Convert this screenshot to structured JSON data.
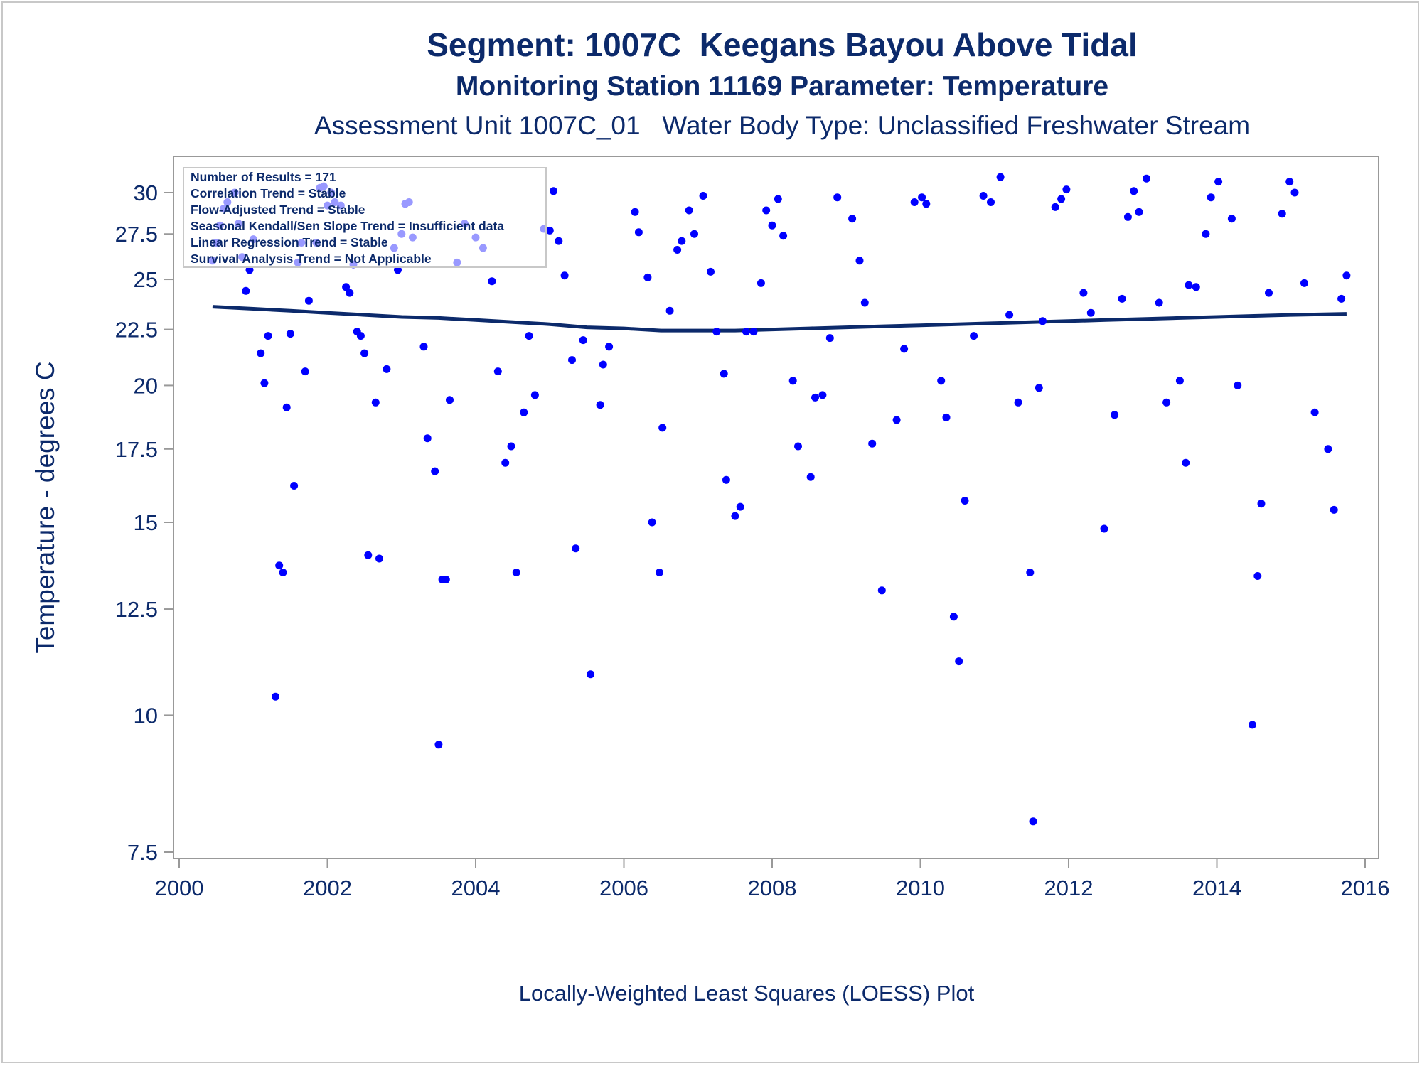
{
  "chart_data": {
    "type": "scatter",
    "title": "Segment: 1007C  Keegans Bayou Above Tidal",
    "subtitle": "Monitoring Station 11169 Parameter: Temperature",
    "subtitle2": "Assessment Unit 1007C_01   Water Body Type: Unclassified Freshwater Stream",
    "ylabel": "Temperature - degrees C",
    "xlabel": "",
    "footnote": "Locally-Weighted Least Squares (LOESS) Plot",
    "y_scale": "log",
    "xlim": [
      2000,
      2016
    ],
    "ylim": [
      7.5,
      31.6
    ],
    "x_ticks": [
      "2000",
      "2002",
      "2004",
      "2006",
      "2008",
      "2010",
      "2012",
      "2014",
      "2016"
    ],
    "y_ticks": [
      "7.5",
      "10",
      "12.5",
      "15",
      "17.5",
      "20",
      "22.5",
      "25",
      "27.5",
      "30"
    ],
    "legend_lines": [
      "Number of Results = 171",
      "Correlation Trend = Stable",
      "Flow-Adjusted Trend = Stable",
      "Seasonal Kendall/Sen Slope Trend = Insufficient data",
      "Linear Regression Trend = Stable",
      "Survival Analysis Trend = Not Applicable"
    ],
    "legend_position": "top-left",
    "colors": {
      "points": "#0000ff",
      "loess": "#0c2a6b",
      "text": "#0c2a6b",
      "axis": "#999999"
    },
    "points": [
      [
        2000.45,
        26.0
      ],
      [
        2000.5,
        27.0
      ],
      [
        2000.55,
        28.0
      ],
      [
        2000.6,
        29.0
      ],
      [
        2000.65,
        29.4
      ],
      [
        2000.75,
        30.0
      ],
      [
        2000.8,
        28.1
      ],
      [
        2000.85,
        26.2
      ],
      [
        2000.9,
        24.4
      ],
      [
        2000.95,
        25.5
      ],
      [
        2001.0,
        27.2
      ],
      [
        2001.1,
        21.4
      ],
      [
        2001.15,
        20.1
      ],
      [
        2001.2,
        22.2
      ],
      [
        2001.3,
        10.4
      ],
      [
        2001.35,
        13.7
      ],
      [
        2001.4,
        13.5
      ],
      [
        2001.45,
        19.1
      ],
      [
        2001.5,
        22.3
      ],
      [
        2001.55,
        16.2
      ],
      [
        2001.6,
        25.9
      ],
      [
        2001.65,
        27.0
      ],
      [
        2001.7,
        20.6
      ],
      [
        2001.75,
        23.9
      ],
      [
        2001.85,
        27.0
      ],
      [
        2001.9,
        30.3
      ],
      [
        2001.95,
        30.4
      ],
      [
        2002.0,
        29.2
      ],
      [
        2002.05,
        30.0
      ],
      [
        2002.1,
        29.4
      ],
      [
        2002.18,
        29.2
      ],
      [
        2002.25,
        24.6
      ],
      [
        2002.3,
        24.3
      ],
      [
        2002.35,
        25.8
      ],
      [
        2002.4,
        22.4
      ],
      [
        2002.45,
        22.2
      ],
      [
        2002.5,
        21.4
      ],
      [
        2002.55,
        14.0
      ],
      [
        2002.65,
        19.3
      ],
      [
        2002.7,
        13.9
      ],
      [
        2002.8,
        20.7
      ],
      [
        2002.9,
        26.7
      ],
      [
        2002.95,
        25.5
      ],
      [
        2003.0,
        27.5
      ],
      [
        2003.05,
        29.3
      ],
      [
        2003.1,
        29.4
      ],
      [
        2003.15,
        27.3
      ],
      [
        2003.3,
        21.7
      ],
      [
        2003.35,
        17.9
      ],
      [
        2003.45,
        16.7
      ],
      [
        2003.5,
        9.4
      ],
      [
        2003.55,
        13.3
      ],
      [
        2003.6,
        13.3
      ],
      [
        2003.65,
        19.4
      ],
      [
        2003.75,
        25.9
      ],
      [
        2003.85,
        28.1
      ],
      [
        2004.0,
        27.3
      ],
      [
        2004.1,
        26.7
      ],
      [
        2004.22,
        24.9
      ],
      [
        2004.3,
        20.6
      ],
      [
        2004.4,
        17.0
      ],
      [
        2004.48,
        17.6
      ],
      [
        2004.55,
        13.5
      ],
      [
        2004.65,
        18.9
      ],
      [
        2004.72,
        22.2
      ],
      [
        2004.8,
        19.6
      ],
      [
        2004.92,
        27.8
      ],
      [
        2005.0,
        27.7
      ],
      [
        2005.05,
        30.1
      ],
      [
        2005.12,
        27.1
      ],
      [
        2005.2,
        25.2
      ],
      [
        2005.3,
        21.1
      ],
      [
        2005.35,
        14.2
      ],
      [
        2005.45,
        22.0
      ],
      [
        2005.55,
        10.9
      ],
      [
        2005.68,
        19.2
      ],
      [
        2005.72,
        20.9
      ],
      [
        2005.8,
        21.7
      ],
      [
        2006.15,
        28.8
      ],
      [
        2006.2,
        27.6
      ],
      [
        2006.32,
        25.1
      ],
      [
        2006.38,
        15.0
      ],
      [
        2006.48,
        13.5
      ],
      [
        2006.52,
        18.3
      ],
      [
        2006.62,
        23.4
      ],
      [
        2006.72,
        26.6
      ],
      [
        2006.78,
        27.1
      ],
      [
        2006.88,
        28.9
      ],
      [
        2006.95,
        27.5
      ],
      [
        2007.07,
        29.8
      ],
      [
        2007.17,
        25.4
      ],
      [
        2007.25,
        22.4
      ],
      [
        2007.35,
        20.5
      ],
      [
        2007.38,
        16.4
      ],
      [
        2007.5,
        15.2
      ],
      [
        2007.57,
        15.5
      ],
      [
        2007.65,
        22.4
      ],
      [
        2007.75,
        22.4
      ],
      [
        2007.85,
        24.8
      ],
      [
        2007.92,
        28.9
      ],
      [
        2008.0,
        28.0
      ],
      [
        2008.08,
        29.6
      ],
      [
        2008.15,
        27.4
      ],
      [
        2008.28,
        20.2
      ],
      [
        2008.35,
        17.6
      ],
      [
        2008.52,
        16.5
      ],
      [
        2008.58,
        19.5
      ],
      [
        2008.68,
        19.6
      ],
      [
        2008.78,
        22.1
      ],
      [
        2008.88,
        29.7
      ],
      [
        2009.08,
        28.4
      ],
      [
        2009.18,
        26.0
      ],
      [
        2009.25,
        23.8
      ],
      [
        2009.35,
        17.7
      ],
      [
        2009.48,
        13.0
      ],
      [
        2009.68,
        18.6
      ],
      [
        2009.78,
        21.6
      ],
      [
        2009.92,
        29.4
      ],
      [
        2010.02,
        29.7
      ],
      [
        2010.08,
        29.3
      ],
      [
        2010.28,
        20.2
      ],
      [
        2010.35,
        18.7
      ],
      [
        2010.45,
        12.3
      ],
      [
        2010.52,
        11.2
      ],
      [
        2010.6,
        15.7
      ],
      [
        2010.72,
        22.2
      ],
      [
        2010.85,
        29.8
      ],
      [
        2010.95,
        29.4
      ],
      [
        2011.08,
        31.0
      ],
      [
        2011.2,
        23.2
      ],
      [
        2011.32,
        19.3
      ],
      [
        2011.48,
        13.5
      ],
      [
        2011.52,
        8.0
      ],
      [
        2011.6,
        19.9
      ],
      [
        2011.65,
        22.9
      ],
      [
        2011.82,
        29.1
      ],
      [
        2011.9,
        29.6
      ],
      [
        2011.97,
        30.2
      ],
      [
        2012.2,
        24.3
      ],
      [
        2012.3,
        23.3
      ],
      [
        2012.48,
        14.8
      ],
      [
        2012.62,
        18.8
      ],
      [
        2012.72,
        24.0
      ],
      [
        2012.8,
        28.5
      ],
      [
        2012.88,
        30.1
      ],
      [
        2012.95,
        28.8
      ],
      [
        2013.05,
        30.9
      ],
      [
        2013.22,
        23.8
      ],
      [
        2013.32,
        19.3
      ],
      [
        2013.5,
        20.2
      ],
      [
        2013.58,
        17.0
      ],
      [
        2013.62,
        24.7
      ],
      [
        2013.72,
        24.6
      ],
      [
        2013.85,
        27.5
      ],
      [
        2013.92,
        29.7
      ],
      [
        2014.02,
        30.7
      ],
      [
        2014.2,
        28.4
      ],
      [
        2014.28,
        20.0
      ],
      [
        2014.48,
        9.8
      ],
      [
        2014.55,
        13.4
      ],
      [
        2014.6,
        15.6
      ],
      [
        2014.7,
        24.3
      ],
      [
        2014.88,
        28.7
      ],
      [
        2014.98,
        30.7
      ],
      [
        2015.05,
        30.0
      ],
      [
        2015.18,
        24.8
      ],
      [
        2015.32,
        18.9
      ],
      [
        2015.5,
        17.5
      ],
      [
        2015.58,
        15.4
      ],
      [
        2015.68,
        24.0
      ],
      [
        2015.75,
        25.2
      ]
    ],
    "loess": [
      [
        2000.45,
        23.6
      ],
      [
        2001.0,
        23.5
      ],
      [
        2001.5,
        23.4
      ],
      [
        2002.0,
        23.3
      ],
      [
        2002.5,
        23.2
      ],
      [
        2003.0,
        23.1
      ],
      [
        2003.5,
        23.05
      ],
      [
        2004.0,
        22.95
      ],
      [
        2004.5,
        22.85
      ],
      [
        2005.0,
        22.75
      ],
      [
        2005.5,
        22.6
      ],
      [
        2006.0,
        22.55
      ],
      [
        2006.5,
        22.45
      ],
      [
        2007.0,
        22.45
      ],
      [
        2007.5,
        22.45
      ],
      [
        2008.0,
        22.5
      ],
      [
        2008.5,
        22.55
      ],
      [
        2009.0,
        22.6
      ],
      [
        2009.5,
        22.65
      ],
      [
        2010.0,
        22.7
      ],
      [
        2010.5,
        22.75
      ],
      [
        2011.0,
        22.8
      ],
      [
        2011.5,
        22.85
      ],
      [
        2012.0,
        22.9
      ],
      [
        2012.5,
        22.95
      ],
      [
        2013.0,
        23.0
      ],
      [
        2013.5,
        23.05
      ],
      [
        2014.0,
        23.1
      ],
      [
        2014.5,
        23.15
      ],
      [
        2015.0,
        23.2
      ],
      [
        2015.75,
        23.25
      ]
    ]
  }
}
